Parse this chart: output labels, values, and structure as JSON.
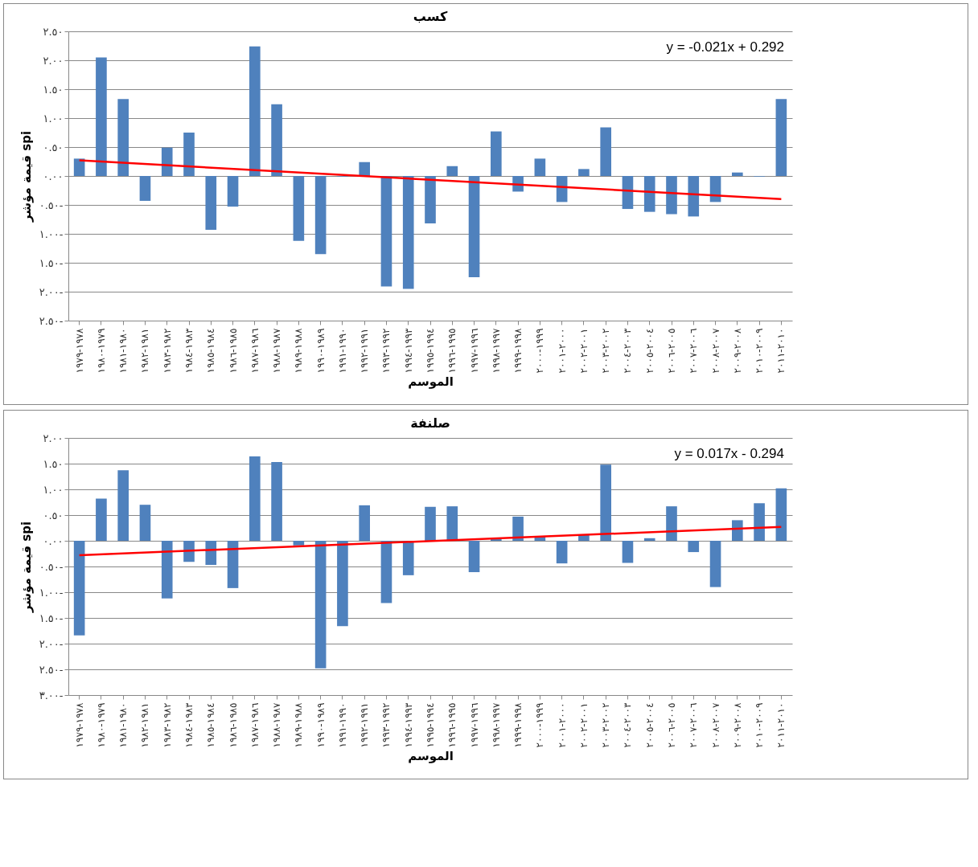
{
  "chart_data": [
    {
      "type": "bar",
      "title": "كسب",
      "xlabel": "الموسم",
      "ylabel": "قيمة مؤشر spi",
      "categories": [
        "١٩٧٨-١٩٧٩",
        "١٩٧٩-١٩٨٠",
        "١٩٨٠-١٩٨١",
        "١٩٨١-١٩٨٢",
        "١٩٨٢-١٩٨٣",
        "١٩٨٣-١٩٨٤",
        "١٩٨٤-١٩٨٥",
        "١٩٨٥-١٩٨٦",
        "١٩٨٦-١٩٨٧",
        "١٩٨٧-١٩٨٨",
        "١٩٨٨-١٩٨٩",
        "١٩٨٩-١٩٩٠",
        "١٩٩٠-١٩٩١",
        "١٩٩١-١٩٩٢",
        "١٩٩٢-١٩٩٣",
        "١٩٩٣-١٩٩٤",
        "١٩٩٤-١٩٩٥",
        "١٩٩٥-١٩٩٦",
        "١٩٩٦-١٩٩٧",
        "١٩٩٧-١٩٩٨",
        "١٩٩٨-١٩٩٩",
        "١٩٩٩-٢٠٠٠",
        "٢٠٠٠-٢٠٠١",
        "٢٠٠١-٢٠٠٢",
        "٢٠٠٢-٢٠٠٣",
        "٢٠٠٣-٢٠٠٤",
        "٢٠٠٤-٢٠٠٥",
        "٢٠٠٥-٢٠٠٦",
        "٢٠٠٦-٢٠٠٧",
        "٢٠٠٧-٢٠٠٨",
        "٢٠٠٨-٢٠٠٩",
        "٢٠٠٩-٢٠١٠",
        "٢٠١٠-٢٠١١"
      ],
      "series": [
        {
          "type": "bar",
          "color": "#4f81bd",
          "values": [
            0.3,
            2.05,
            1.33,
            -0.43,
            0.49,
            0.75,
            -0.93,
            -0.53,
            2.24,
            1.24,
            -1.12,
            -1.35,
            -0.01,
            0.24,
            -1.91,
            -1.95,
            -0.82,
            0.17,
            -1.75,
            0.77,
            -0.27,
            0.3,
            -0.45,
            0.12,
            0.84,
            -0.57,
            -0.62,
            -0.66,
            -0.7,
            -0.45,
            0.06,
            -0.01,
            1.33
          ]
        },
        {
          "type": "line",
          "color": "#ff0000",
          "x": [
            "١٩٧٨-١٩٧٩",
            "٢٠١٠-٢٠١١"
          ],
          "values": [
            0.27,
            -0.4
          ]
        }
      ],
      "annotations": [
        "y = -0.021x + 0.292"
      ],
      "ylim": [
        -2.5,
        2.5
      ],
      "yticks": [
        {
          "value": 2.5,
          "label": "٢.٥٠"
        },
        {
          "value": 2,
          "label": "٢.٠٠"
        },
        {
          "value": 1.5,
          "label": "١.٥٠"
        },
        {
          "value": 1,
          "label": "١.٠٠"
        },
        {
          "value": 0.5,
          "label": "٠.٥٠"
        },
        {
          "value": 0,
          "label": "٠.٠٠"
        },
        {
          "value": -0.5,
          "label": "٠.٥٠-"
        },
        {
          "value": -1,
          "label": "١.٠٠-"
        },
        {
          "value": -1.5,
          "label": "١.٥٠-"
        },
        {
          "value": -2,
          "label": "٢.٠٠-"
        },
        {
          "value": -2.5,
          "label": "٢.٥٠-"
        }
      ],
      "grid": "y"
    },
    {
      "type": "bar",
      "title": "صلنفة",
      "xlabel": "الموسم",
      "ylabel": "قيمة مؤشر spi",
      "categories": [
        "١٩٧٨-١٩٧٩",
        "١٩٧٩-١٩٨٠",
        "١٩٨٠-١٩٨١",
        "١٩٨١-١٩٨٢",
        "١٩٨٢-١٩٨٣",
        "١٩٨٣-١٩٨٤",
        "١٩٨٤-١٩٨٥",
        "١٩٨٥-١٩٨٦",
        "١٩٨٦-١٩٨٧",
        "١٩٨٧-١٩٨٨",
        "١٩٨٨-١٩٨٩",
        "١٩٨٩-١٩٩٠",
        "١٩٩٠-١٩٩١",
        "١٩٩١-١٩٩٢",
        "١٩٩٢-١٩٩٣",
        "١٩٩٣-١٩٩٤",
        "١٩٩٤-١٩٩٥",
        "١٩٩٥-١٩٩٦",
        "١٩٩٦-١٩٩٧",
        "١٩٩٧-١٩٩٨",
        "١٩٩٨-١٩٩٩",
        "١٩٩٩-٢٠٠٠",
        "٢٠٠٠-٢٠٠١",
        "٢٠٠١-٢٠٠٢",
        "٢٠٠٢-٢٠٠٣",
        "٢٠٠٣-٢٠٠٤",
        "٢٠٠٤-٢٠٠٥",
        "٢٠٠٥-٢٠٠٦",
        "٢٠٠٦-٢٠٠٧",
        "٢٠٠٧-٢٠٠٨",
        "٢٠٠٨-٢٠٠٩",
        "٢٠٠٩-٢٠١٠",
        "٢٠١٠-٢٠١١"
      ],
      "series": [
        {
          "type": "bar",
          "color": "#4f81bd",
          "values": [
            -1.84,
            0.82,
            1.37,
            0.7,
            -1.12,
            -0.41,
            -0.47,
            -0.92,
            1.64,
            1.53,
            -0.09,
            -2.48,
            -1.66,
            0.69,
            -1.21,
            -0.67,
            0.66,
            0.67,
            -0.61,
            0.05,
            0.47,
            0.08,
            -0.44,
            0.11,
            1.48,
            -0.43,
            0.05,
            0.67,
            -0.22,
            -0.9,
            0.4,
            0.73,
            1.02
          ]
        },
        {
          "type": "line",
          "color": "#ff0000",
          "x": [
            "١٩٧٨-١٩٧٩",
            "٢٠١٠-٢٠١١"
          ],
          "values": [
            -0.28,
            0.27
          ]
        }
      ],
      "annotations": [
        "y = 0.017x - 0.294"
      ],
      "ylim": [
        -3,
        2
      ],
      "yticks": [
        {
          "value": 2,
          "label": "٢.٠٠"
        },
        {
          "value": 1.5,
          "label": "١.٥٠"
        },
        {
          "value": 1,
          "label": "١.٠٠"
        },
        {
          "value": 0.5,
          "label": "٠.٥٠"
        },
        {
          "value": 0,
          "label": "٠.٠٠"
        },
        {
          "value": -0.5,
          "label": "٠.٥٠-"
        },
        {
          "value": -1,
          "label": "١.٠٠-"
        },
        {
          "value": -1.5,
          "label": "١.٥٠-"
        },
        {
          "value": -2,
          "label": "٢.٠٠-"
        },
        {
          "value": -2.5,
          "label": "٢.٥٠-"
        },
        {
          "value": -3,
          "label": "٣.٠٠-"
        }
      ],
      "grid": "y"
    }
  ]
}
